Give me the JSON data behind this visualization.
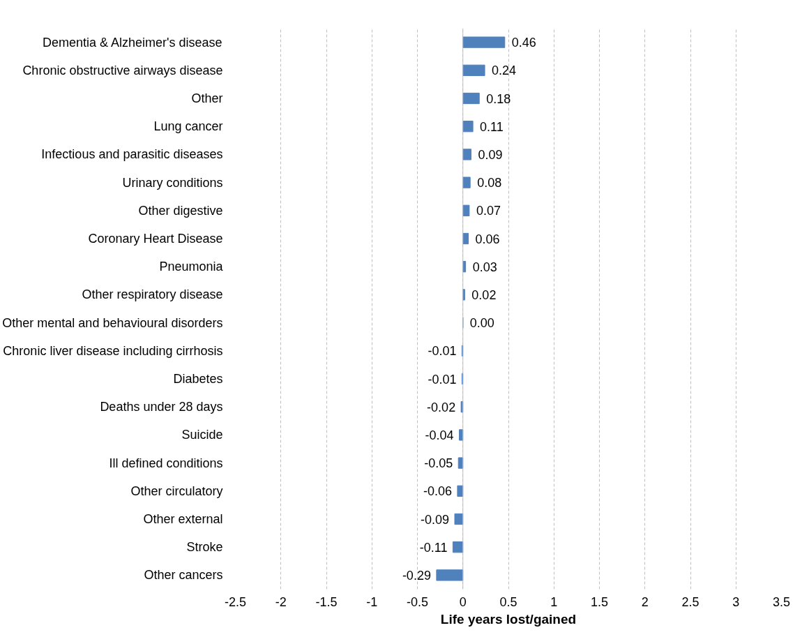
{
  "chart_data": {
    "type": "bar",
    "orientation": "horizontal",
    "xlabel": "Life years lost/gained",
    "categories": [
      "Dementia & Alzheimer's disease",
      "Chronic obstructive airways disease",
      "Other",
      "Lung cancer",
      "Infectious and parasitic diseases",
      "Urinary conditions",
      "Other digestive",
      "Coronary Heart Disease",
      "Pneumonia",
      "Other respiratory disease",
      "Other mental and behavioural disorders",
      "Chronic liver disease including cirrhosis",
      "Diabetes",
      "Deaths under 28 days",
      "Suicide",
      "Ill defined conditions",
      "Other circulatory",
      "Other external",
      "Stroke",
      "Other cancers"
    ],
    "values": [
      0.46,
      0.24,
      0.18,
      0.11,
      0.09,
      0.08,
      0.07,
      0.06,
      0.03,
      0.02,
      0.0,
      -0.01,
      -0.01,
      -0.02,
      -0.04,
      -0.05,
      -0.06,
      -0.09,
      -0.11,
      -0.29
    ],
    "value_labels": [
      "0.46",
      "0.24",
      "0.18",
      "0.11",
      "0.09",
      "0.08",
      "0.07",
      "0.06",
      "0.03",
      "0.02",
      "0.00",
      "-0.01",
      "-0.01",
      "-0.02",
      "-0.04",
      "-0.05",
      "-0.06",
      "-0.09",
      "-0.11",
      "-0.29"
    ],
    "color": "#4f81bd",
    "grid": "x",
    "xlim": [
      -2.5,
      3.5
    ],
    "xticks": [
      -2.5,
      -2,
      -1.5,
      -1,
      -0.5,
      0,
      0.5,
      1,
      1.5,
      2,
      2.5,
      3,
      3.5
    ]
  }
}
